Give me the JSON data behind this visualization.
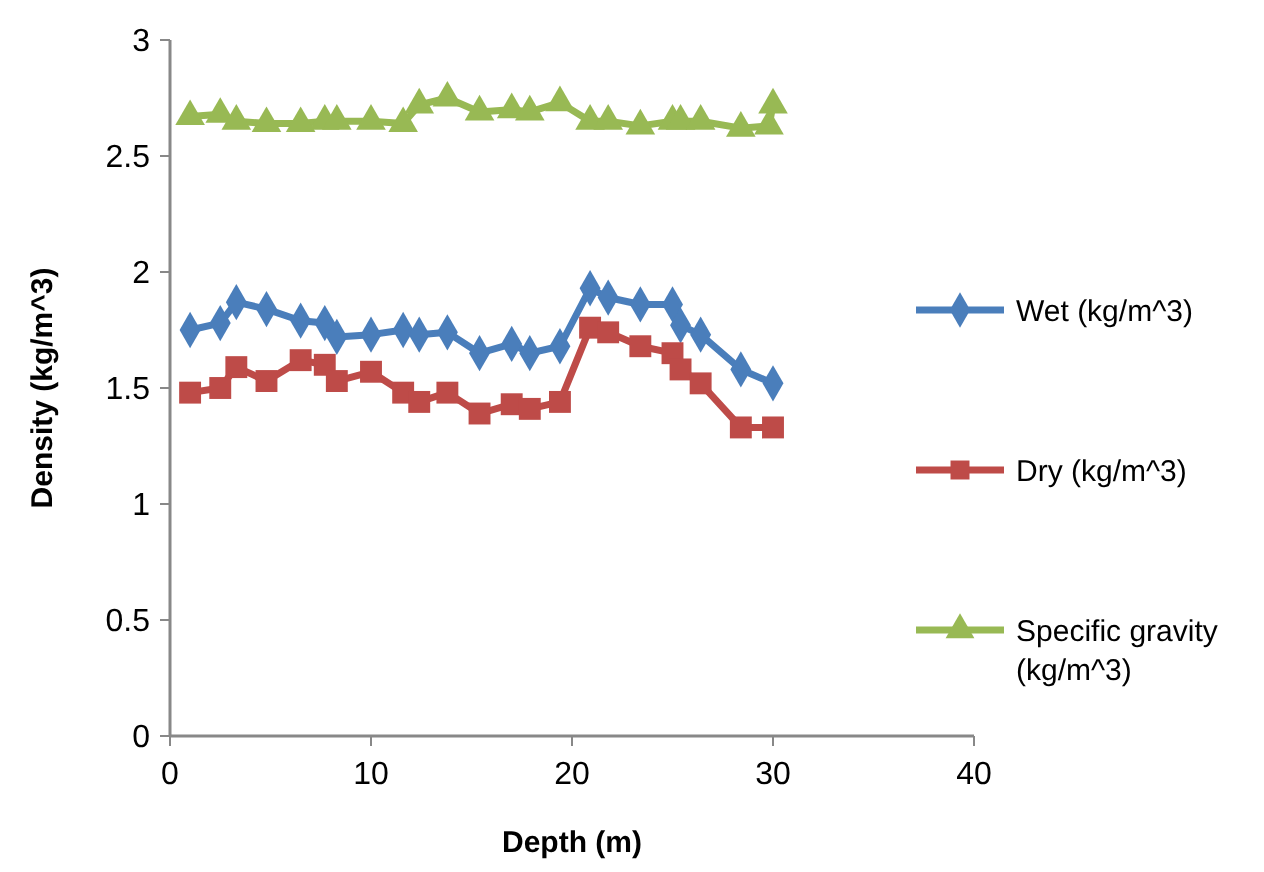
{
  "chart_data": {
    "type": "line",
    "xlabel": "Depth (m)",
    "ylabel": "Density (kg/m^3)",
    "xlim": [
      0,
      40
    ],
    "xticks": [
      0,
      10,
      20,
      30,
      40
    ],
    "ylim": [
      0,
      3
    ],
    "yticks": [
      0,
      0.5,
      1,
      1.5,
      2,
      2.5,
      3
    ],
    "x": [
      1,
      2.5,
      3.3,
      4.8,
      6.5,
      7.7,
      8.3,
      10,
      11.6,
      12.4,
      13.8,
      15.4,
      17,
      17.9,
      19.4,
      20.9,
      21.8,
      23.4,
      25,
      25.4,
      26.4,
      28.4,
      30
    ],
    "legend": "right",
    "series": [
      {
        "name": "Wet (kg/m^3)",
        "color": "#4a7ebb",
        "marker": "diamond",
        "values": [
          1.75,
          1.78,
          1.87,
          1.84,
          1.79,
          1.78,
          1.72,
          1.73,
          1.75,
          1.73,
          1.74,
          1.65,
          1.69,
          1.65,
          1.68,
          1.93,
          1.89,
          1.86,
          1.86,
          1.77,
          1.73,
          1.58,
          1.52
        ]
      },
      {
        "name": "Dry (kg/m^3)",
        "color": "#be4b48",
        "marker": "square",
        "values": [
          1.48,
          1.5,
          1.59,
          1.53,
          1.62,
          1.6,
          1.53,
          1.57,
          1.48,
          1.44,
          1.48,
          1.39,
          1.43,
          1.41,
          1.44,
          1.76,
          1.74,
          1.68,
          1.65,
          1.58,
          1.52,
          1.33,
          1.33
        ]
      },
      {
        "name": "Specific gravity (kg/m^3)",
        "color": "#98b954",
        "marker": "triangle",
        "x": [
          1,
          2.5,
          3.3,
          4.8,
          6.5,
          7.7,
          8.3,
          10,
          11.6,
          12.4,
          13.8,
          15.4,
          17,
          17.9,
          19.4,
          20.9,
          21.8,
          23.4,
          25,
          25.4,
          26.4,
          28.4,
          29.8,
          30
        ],
        "values": [
          2.67,
          2.68,
          2.65,
          2.64,
          2.64,
          2.65,
          2.65,
          2.65,
          2.64,
          2.72,
          2.75,
          2.69,
          2.7,
          2.69,
          2.73,
          2.65,
          2.65,
          2.63,
          2.65,
          2.65,
          2.65,
          2.62,
          2.63,
          2.72
        ]
      }
    ]
  }
}
